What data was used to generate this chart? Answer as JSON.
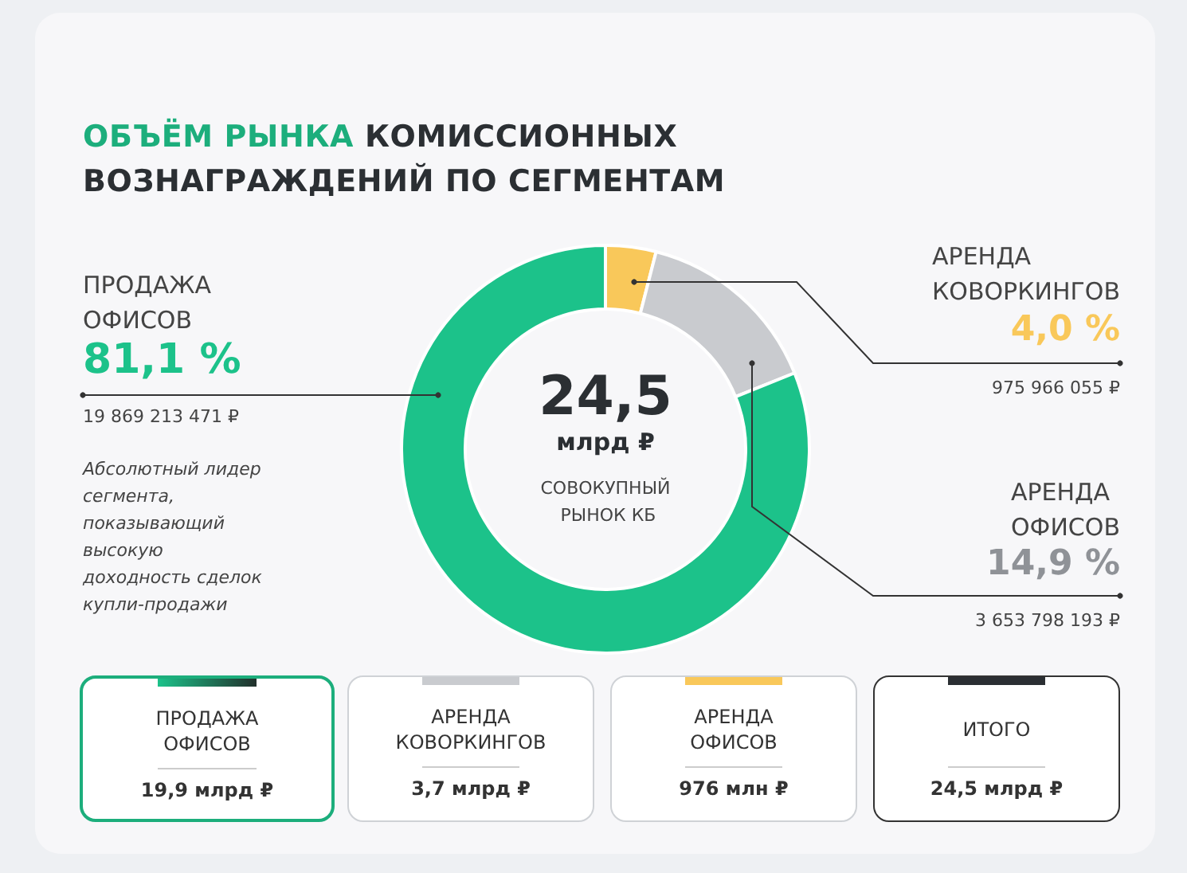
{
  "chart_data": {
    "type": "donut",
    "title": "ОБЪЁМ РЫНКА КОМИССИОННЫХ ВОЗНАГРАЖДЕНИЙ ПО СЕГМЕНТАМ",
    "categories": [
      "АРЕНДА КОВОРКИНГОВ",
      "АРЕНДА ОФИСОВ",
      "ПРОДАЖА ОФИСОВ"
    ],
    "values": [
      4.0,
      14.9,
      81.1
    ],
    "colors": [
      "#f9c85a",
      "#c9cbcf",
      "#1cc28a"
    ],
    "value_labels": [
      "4,0 %",
      "14,9 %",
      "81,1 %"
    ],
    "annotations": [
      "975 966 055 ₽",
      "3 653 798 193 ₽",
      "19 869 213 471 ₽",
      "Абсолютный лидер сегмента, показывающий высокую доходность сделок купли-продажи",
      "24,5",
      "млрд ₽",
      "СОВОКУПНЫЙ РЫНОК КБ",
      "ПРОДАЖА ОФИСОВ",
      "19,9 млрд ₽",
      "АРЕНДА КОВОРКИНГОВ",
      "3,7 млрд ₽",
      "АРЕНДА ОФИСОВ",
      "976 млн ₽",
      "ИТОГО",
      "24,5 млрд ₽"
    ]
  }
}
